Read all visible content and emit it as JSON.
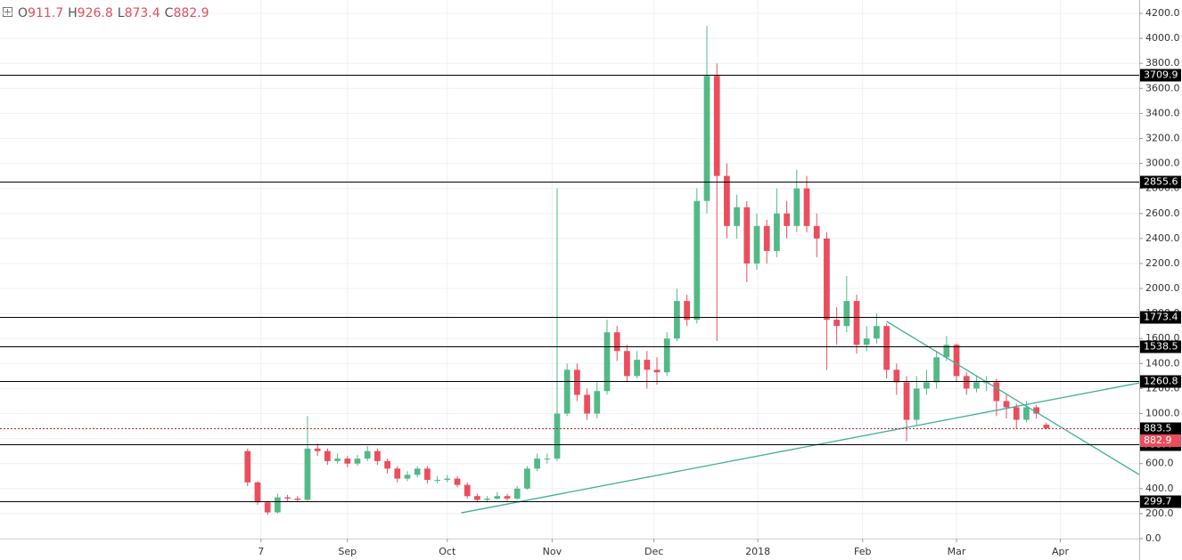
{
  "chart_data": {
    "type": "candlestick",
    "legend": [
      {
        "key": "O",
        "value": 911.7
      },
      {
        "key": "H",
        "value": 926.8
      },
      {
        "key": "L",
        "value": 873.4
      },
      {
        "key": "C",
        "value": 882.9
      }
    ],
    "xlim": [
      -24.8,
      89.3
    ],
    "xticks": [
      {
        "value": 1.34,
        "label": "7"
      },
      {
        "value": 10,
        "label": "Sep"
      },
      {
        "value": 20,
        "label": "Oct"
      },
      {
        "value": 30.5,
        "label": "Nov"
      },
      {
        "value": 40.7,
        "label": "Dec"
      },
      {
        "value": 51.1,
        "label": "2018"
      },
      {
        "value": 61.6,
        "label": "Feb"
      },
      {
        "value": 71,
        "label": "Mar"
      },
      {
        "value": 81.4,
        "label": "Apr"
      }
    ],
    "ylim": [
      0,
      4200
    ],
    "yticks": [
      {
        "value": 0,
        "label": "0.0"
      },
      {
        "value": 200,
        "label": "200.0"
      },
      {
        "value": 400,
        "label": "400.0"
      },
      {
        "value": 600,
        "label": "600.0"
      },
      {
        "value": 800,
        "label": "800.0"
      },
      {
        "value": 1000,
        "label": "1000.0"
      },
      {
        "value": 1200,
        "label": "1200.0"
      },
      {
        "value": 1400,
        "label": "1400.0"
      },
      {
        "value": 1600,
        "label": "1600.0"
      },
      {
        "value": 1800,
        "label": "1800.0"
      },
      {
        "value": 2000,
        "label": "2000.0"
      },
      {
        "value": 2200,
        "label": "2200.0"
      },
      {
        "value": 2400,
        "label": "2400.0"
      },
      {
        "value": 2600,
        "label": "2600.0"
      },
      {
        "value": 2800,
        "label": "2800.0"
      },
      {
        "value": 3000,
        "label": "3000.0"
      },
      {
        "value": 3200,
        "label": "3200.0"
      },
      {
        "value": 3400,
        "label": "3400.0"
      },
      {
        "value": 3600,
        "label": "3600.0"
      },
      {
        "value": 3800,
        "label": "3800.0"
      },
      {
        "value": 4000,
        "label": "4000.0"
      },
      {
        "value": 4200,
        "label": "4200.0"
      }
    ],
    "grid": true,
    "up_color": "#53b987",
    "down_color": "#eb4d5c",
    "open": [
      700,
      450,
      290,
      210,
      330,
      320,
      310,
      720,
      700,
      620,
      640,
      600,
      640,
      700,
      620,
      560,
      480,
      510,
      560,
      470,
      470,
      480,
      430,
      340,
      310,
      320,
      340,
      320,
      400,
      560,
      640,
      640,
      1000,
      1350,
      1150,
      1000,
      1180,
      1650,
      1500,
      1300,
      1430,
      1350,
      1330,
      1600,
      1900,
      1750,
      2700,
      3700,
      2900,
      2500,
      2650,
      2200,
      2500,
      2300,
      2600,
      2500,
      2800,
      2500,
      2400,
      1750,
      1700,
      1900,
      1550,
      1600,
      1700,
      1350,
      1250,
      950,
      1200,
      1250,
      1450,
      1550,
      1300,
      1200,
      1250,
      1250,
      1100,
      1050,
      950,
      1050,
      911.7
    ],
    "high": [
      720,
      460,
      300,
      360,
      350,
      340,
      980,
      760,
      720,
      680,
      660,
      670,
      740,
      720,
      640,
      580,
      540,
      580,
      580,
      500,
      510,
      500,
      450,
      360,
      340,
      370,
      360,
      420,
      580,
      680,
      680,
      2800,
      1400,
      1400,
      1200,
      1250,
      1750,
      1700,
      1550,
      1500,
      1500,
      1450,
      1650,
      2000,
      1950,
      2800,
      4100,
      3800,
      3000,
      2750,
      2700,
      2600,
      2550,
      2800,
      2700,
      2950,
      2900,
      2600,
      2450,
      1850,
      2100,
      1950,
      1700,
      1800,
      1720,
      1400,
      1300,
      1300,
      1350,
      1500,
      1620,
      1560,
      1330,
      1300,
      1300,
      1280,
      1150,
      1080,
      1100,
      1070,
      926.8
    ],
    "low": [
      420,
      270,
      190,
      200,
      300,
      290,
      300,
      660,
      590,
      600,
      570,
      580,
      620,
      590,
      520,
      450,
      460,
      490,
      440,
      440,
      450,
      410,
      320,
      290,
      290,
      310,
      300,
      310,
      390,
      540,
      600,
      620,
      980,
      1100,
      950,
      960,
      1150,
      1420,
      1250,
      1280,
      1200,
      1230,
      1300,
      1580,
      1700,
      1720,
      2600,
      1580,
      2400,
      2400,
      2050,
      2150,
      2200,
      2250,
      2400,
      2450,
      2450,
      2250,
      1350,
      1550,
      1650,
      1480,
      1500,
      1560,
      1280,
      1150,
      780,
      900,
      1150,
      1200,
      1420,
      1250,
      1150,
      1170,
      1180,
      980,
      960,
      880,
      930,
      960,
      873.4
    ],
    "close": [
      450,
      290,
      210,
      330,
      320,
      310,
      720,
      700,
      620,
      640,
      600,
      640,
      700,
      620,
      560,
      480,
      510,
      560,
      470,
      470,
      480,
      430,
      340,
      310,
      320,
      340,
      320,
      400,
      560,
      640,
      640,
      1000,
      1350,
      1150,
      1000,
      1180,
      1650,
      1500,
      1300,
      1430,
      1350,
      1330,
      1600,
      1900,
      1750,
      2700,
      3700,
      2900,
      2500,
      2650,
      2200,
      2500,
      2300,
      2600,
      2500,
      2800,
      2500,
      2400,
      1750,
      1700,
      1900,
      1550,
      1600,
      1700,
      1350,
      1250,
      950,
      1200,
      1250,
      1450,
      1550,
      1300,
      1200,
      1250,
      1250,
      1100,
      1050,
      950,
      1050,
      1000,
      882.9
    ],
    "levels": [
      {
        "value": 3709.9,
        "color": "#000000",
        "style": "solid"
      },
      {
        "value": 2855.6,
        "color": "#000000",
        "style": "solid"
      },
      {
        "value": 1773.4,
        "color": "#000000",
        "style": "solid"
      },
      {
        "value": 1538.5,
        "color": "#000000",
        "style": "solid"
      },
      {
        "value": 1260.8,
        "color": "#000000",
        "style": "solid"
      },
      {
        "value": 883.5,
        "color": "#b22833",
        "style": "dotted"
      },
      {
        "value": 755.4,
        "color": "#000000",
        "style": "solid"
      },
      {
        "value": 299.7,
        "color": "#000000",
        "style": "solid"
      }
    ],
    "last_price": {
      "value": 882.9,
      "color": "#eb4d5c"
    },
    "trendlines": [
      {
        "x": [
          21.4,
          89.3
        ],
        "y": [
          206,
          1245
        ],
        "color": "#3fae96"
      },
      {
        "x": [
          64.0,
          89.3
        ],
        "y": [
          1737,
          512
        ],
        "color": "#3fae96"
      }
    ]
  }
}
